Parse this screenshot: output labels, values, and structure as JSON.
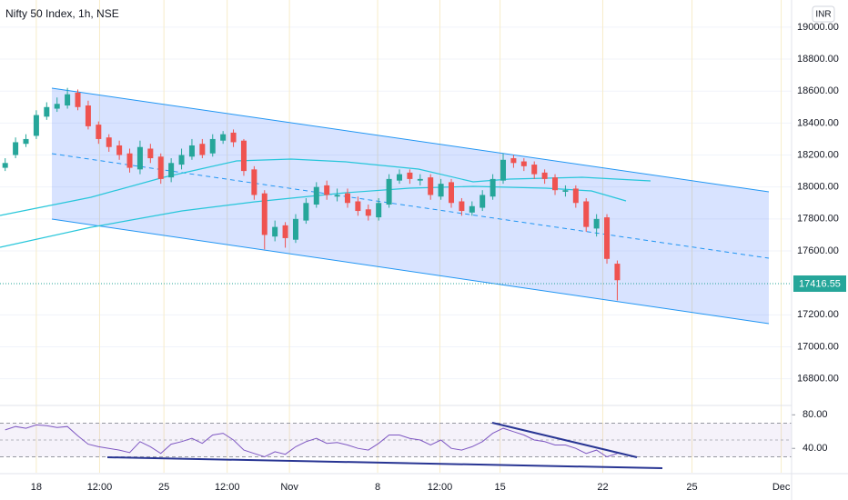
{
  "header": {
    "title": "Nifty 50 Index, 1h, NSE",
    "currency": "INR"
  },
  "chart_data": {
    "type": "candlestick",
    "xlim": [
      -0.5,
      75.8
    ],
    "xticks": [
      {
        "value": 3.0,
        "label": "18"
      },
      {
        "value": 9.1,
        "label": "12:00"
      },
      {
        "value": 15.3,
        "label": "25"
      },
      {
        "value": 21.4,
        "label": "12:00"
      },
      {
        "value": 27.4,
        "label": "Nov"
      },
      {
        "value": 35.9,
        "label": "8"
      },
      {
        "value": 41.9,
        "label": "12:00"
      },
      {
        "value": 47.7,
        "label": "15"
      },
      {
        "value": 57.6,
        "label": "22"
      },
      {
        "value": 66.2,
        "label": "25"
      },
      {
        "value": 74.8,
        "label": "Dec"
      }
    ],
    "ylim": [
      16650,
      19170
    ],
    "yticks": [
      {
        "value": 19000,
        "label": "19000.00"
      },
      {
        "value": 18800,
        "label": "18800.00"
      },
      {
        "value": 18600,
        "label": "18600.00"
      },
      {
        "value": 18400,
        "label": "18400.00"
      },
      {
        "value": 18200,
        "label": "18200.00"
      },
      {
        "value": 18000,
        "label": "18000.00"
      },
      {
        "value": 17800,
        "label": "17800.00"
      },
      {
        "value": 17600,
        "label": "17600.00"
      },
      {
        "value": 17200,
        "label": "17200.00"
      },
      {
        "value": 17000,
        "label": "17000.00"
      },
      {
        "value": 16800,
        "label": "16800.00"
      }
    ],
    "grid": true,
    "up_color": "#26a69a",
    "down_color": "#ef5350",
    "open": [
      18120,
      18200,
      18270,
      18320,
      18440,
      18490,
      18510,
      18590,
      18510,
      18390,
      18310,
      18260,
      18210,
      18110,
      18240,
      18190,
      18060,
      18140,
      18190,
      18270,
      18210,
      18290,
      18340,
      18290,
      18110,
      17960,
      17690,
      17760,
      17670,
      17790,
      17890,
      18010,
      17940,
      17960,
      17910,
      17860,
      17810,
      17890,
      18040,
      18090,
      18040,
      18060,
      17940,
      18030,
      17910,
      17840,
      17870,
      17940,
      18040,
      18180,
      18160,
      18140,
      18090,
      18060,
      17970,
      17990,
      17910,
      17740,
      17810,
      17520
    ],
    "high": [
      18180,
      18310,
      18330,
      18480,
      18530,
      18560,
      18620,
      18610,
      18540,
      18410,
      18330,
      18290,
      18240,
      18290,
      18270,
      18210,
      18180,
      18240,
      18300,
      18300,
      18330,
      18350,
      18360,
      18300,
      18130,
      17980,
      17790,
      17780,
      17830,
      17930,
      18030,
      18040,
      17990,
      17990,
      17940,
      17890,
      17930,
      18080,
      18110,
      18110,
      18080,
      18080,
      18050,
      18050,
      17930,
      17910,
      17980,
      18080,
      18210,
      18200,
      18180,
      18160,
      18110,
      18080,
      18010,
      18010,
      17930,
      17830,
      17830,
      17540
    ],
    "low": [
      18100,
      18180,
      18250,
      18300,
      18420,
      18470,
      18490,
      18480,
      18360,
      18270,
      18220,
      18170,
      18090,
      18080,
      18150,
      18020,
      18030,
      18110,
      18170,
      18180,
      18190,
      18270,
      18250,
      18070,
      17920,
      17610,
      17660,
      17620,
      17650,
      17770,
      17870,
      17920,
      17910,
      17870,
      17820,
      17790,
      17790,
      17870,
      18020,
      18020,
      18010,
      17920,
      17920,
      17870,
      17820,
      17820,
      17850,
      17920,
      18020,
      18120,
      18100,
      18050,
      18020,
      17950,
      17940,
      17870,
      17720,
      17690,
      17520,
      17290
    ],
    "close": [
      18150,
      18280,
      18300,
      18450,
      18500,
      18520,
      18580,
      18500,
      18380,
      18300,
      18250,
      18200,
      18120,
      18250,
      18180,
      18050,
      18150,
      18200,
      18260,
      18200,
      18300,
      18330,
      18280,
      18100,
      17950,
      17700,
      17750,
      17680,
      17800,
      17900,
      18000,
      17950,
      17950,
      17900,
      17850,
      17820,
      17900,
      18050,
      18080,
      18050,
      18050,
      17950,
      18020,
      17900,
      17850,
      17880,
      17950,
      18050,
      18170,
      18150,
      18130,
      18080,
      18050,
      17980,
      17980,
      17900,
      17750,
      17800,
      17550,
      17416.55
    ],
    "rsi": {
      "type": "line",
      "color": "#7e57c2",
      "ylim": [
        11,
        89
      ],
      "yticks": [
        {
          "value": 80,
          "label": "80.00"
        },
        {
          "value": 40,
          "label": "40.00"
        }
      ],
      "values": [
        62,
        66,
        64,
        68,
        67,
        65,
        66,
        55,
        45,
        42,
        40,
        38,
        35,
        48,
        42,
        34,
        45,
        48,
        52,
        46,
        56,
        58,
        50,
        38,
        34,
        30,
        36,
        33,
        42,
        48,
        52,
        46,
        47,
        44,
        40,
        38,
        46,
        56,
        56,
        52,
        50,
        44,
        50,
        40,
        38,
        42,
        48,
        58,
        64,
        60,
        56,
        50,
        48,
        44,
        44,
        40,
        34,
        38,
        30,
        34
      ]
    }
  }
}
